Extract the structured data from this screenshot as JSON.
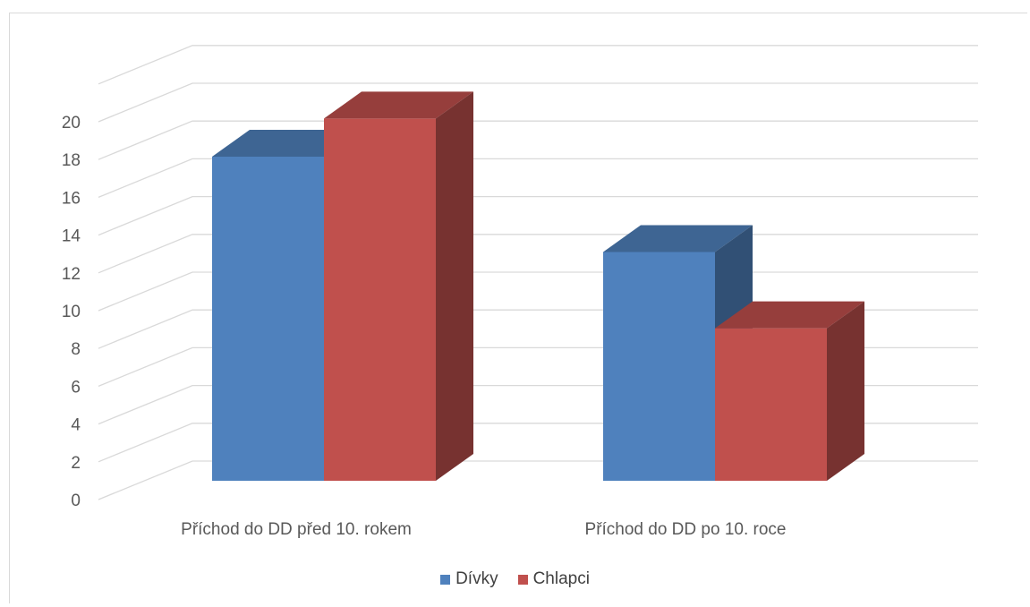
{
  "chart_data": {
    "type": "bar",
    "style": "3d-clustered-column",
    "categories": [
      "Příchod do DD před 10. rokem",
      "Příchod do DD po 10. roce"
    ],
    "series": [
      {
        "name": "Dívky",
        "values": [
          17,
          12
        ],
        "color": "#4f81bd"
      },
      {
        "name": "Chlapci",
        "values": [
          19,
          8
        ],
        "color": "#c0504d"
      }
    ],
    "ylim": [
      0,
      20
    ],
    "yticks": [
      0,
      2,
      4,
      6,
      8,
      10,
      12,
      14,
      16,
      18,
      20
    ],
    "grid": true,
    "legend_position": "bottom",
    "title": "",
    "xlabel": "",
    "ylabel": ""
  },
  "colors": {
    "grid": "#d9d9d9",
    "text": "#595959"
  }
}
